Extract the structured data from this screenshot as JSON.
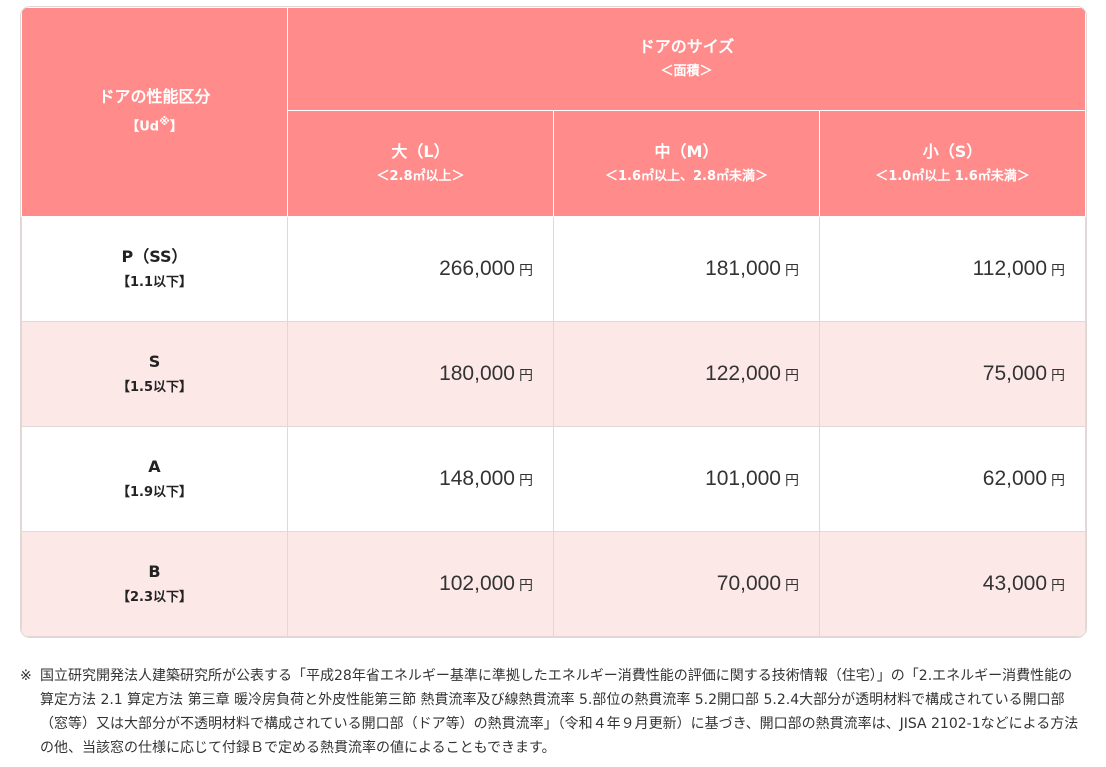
{
  "header": {
    "perf_title": "ドアの性能区分",
    "perf_sub": "【Ud",
    "perf_sub_mark": "※",
    "perf_sub_end": "】",
    "size_title": "ドアのサイズ",
    "size_sub": "＜面積＞",
    "columns": [
      {
        "label": "大（L）",
        "range": "＜2.8㎡以上＞"
      },
      {
        "label": "中（M）",
        "range": "＜1.6㎡以上、2.8㎡未満＞"
      },
      {
        "label": "小（S）",
        "range": "＜1.0㎡以上 1.6㎡未満＞"
      }
    ]
  },
  "rows": [
    {
      "label": "P（SS）",
      "sub": "【1.1以下】",
      "prices": [
        "266,000",
        "181,000",
        "112,000"
      ]
    },
    {
      "label": "S",
      "sub": "【1.5以下】",
      "prices": [
        "180,000",
        "122,000",
        "75,000"
      ]
    },
    {
      "label": "A",
      "sub": "【1.9以下】",
      "prices": [
        "148,000",
        "101,000",
        "62,000"
      ]
    },
    {
      "label": "B",
      "sub": "【2.3以下】",
      "prices": [
        "102,000",
        "70,000",
        "43,000"
      ]
    }
  ],
  "unit": "円",
  "note": {
    "mark": "※",
    "text": "国立研究開発法人建築研究所が公表する「平成28年省エネルギー基準に準拠したエネルギー消費性能の評価に関する技術情報（住宅）」の「2.エネルギー消費性能の算定方法 2.1 算定方法 第三章 暖冷房負荷と外皮性能第三節 熱貫流率及び線熱貫流率 5.部位の熱貫流率 5.2開口部 5.2.4大部分が透明材料で構成されている開口部（窓等）又は大部分が不透明材料で構成されている開口部（ドア等）の熱貫流率」（令和４年９月更新）に基づき、開口部の熱貫流率は、JISA 2102-1などによる方法の他、当該窓の仕様に応じて付録Ｂで定める熱貫流率の値によることもできます。"
  }
}
